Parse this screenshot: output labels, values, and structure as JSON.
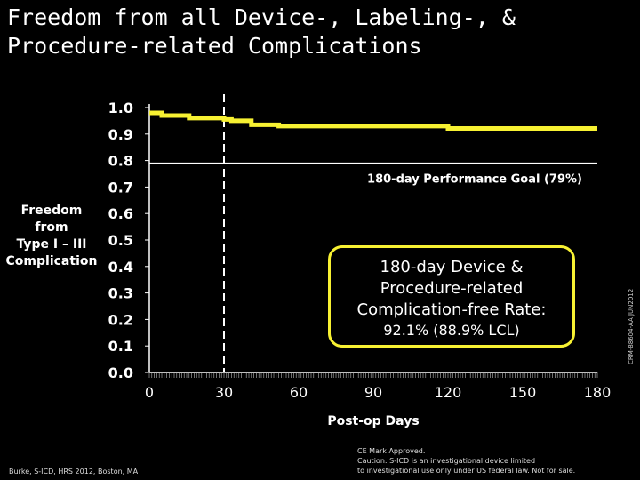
{
  "page": {
    "title": "Freedom from all Device-, Labeling-, & Procedure-related Complications"
  },
  "chart_data": {
    "type": "line",
    "xlabel": "Post-op Days",
    "ylabel_lines": [
      "Freedom",
      "from",
      "Type I – III",
      "Complication"
    ],
    "xlim": [
      0,
      180
    ],
    "ylim": [
      0.0,
      1.0
    ],
    "x_ticks": [
      "0",
      "30",
      "60",
      "90",
      "120",
      "150",
      "180"
    ],
    "y_ticks": [
      "0.0",
      "0.1",
      "0.2",
      "0.3",
      "0.4",
      "0.5",
      "0.6",
      "0.7",
      "0.8",
      "0.9",
      "1.0"
    ],
    "series": [
      {
        "color": "#f7f132",
        "x": [
          0,
          5,
          5,
          16,
          16,
          30,
          30,
          33,
          33,
          41,
          41,
          52,
          52,
          120,
          120,
          180
        ],
        "y": [
          0.98,
          0.98,
          0.97,
          0.97,
          0.96,
          0.96,
          0.955,
          0.955,
          0.95,
          0.95,
          0.935,
          0.935,
          0.93,
          0.93,
          0.921,
          0.921
        ]
      }
    ],
    "performance_goal": {
      "y": 0.79,
      "label": "180-day Performance Goal (79%)",
      "color": "#ffffff"
    },
    "vertical_marker": {
      "x": 30,
      "style": "dashed",
      "color": "#ffffff"
    },
    "callout": {
      "lines": [
        "180-day Device &",
        "Procedure-related",
        "Complication-free Rate:"
      ],
      "rate": "92.1% (88.9% LCL)",
      "border_color": "#f7f132"
    },
    "grid": false
  },
  "footer": {
    "citation": "Burke, S-ICD, HRS 2012, Boston, MA",
    "disclaimer_lines": [
      "CE Mark Approved.",
      "Caution: S-ICD is an investigational device limited",
      "to investigational use only under US federal law. Not for sale."
    ],
    "code": "CRM-88604-AA JUN2012"
  }
}
